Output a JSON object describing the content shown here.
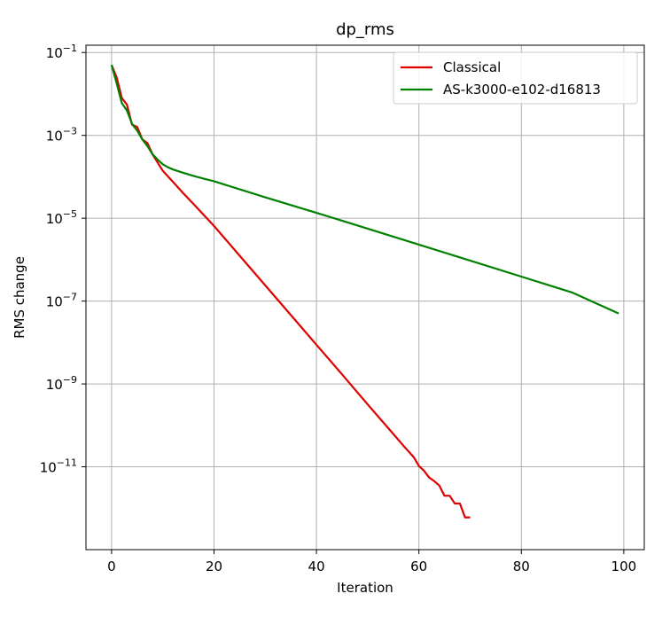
{
  "chart_data": {
    "type": "line",
    "title": "dp_rms",
    "xlabel": "Iteration",
    "ylabel": "RMS change",
    "xlim": [
      -5,
      104
    ],
    "ylim": [
      1e-13,
      0.15
    ],
    "yscale": "log",
    "grid": true,
    "legend_position": "top-right",
    "x_ticks": [
      0,
      20,
      40,
      60,
      80,
      100
    ],
    "y_ticks": [
      {
        "value": 0.1,
        "base": "10",
        "exp": "−1"
      },
      {
        "value": 0.001,
        "base": "10",
        "exp": "−3"
      },
      {
        "value": 1e-05,
        "base": "10",
        "exp": "−5"
      },
      {
        "value": 1e-07,
        "base": "10",
        "exp": "−7"
      },
      {
        "value": 1e-09,
        "base": "10",
        "exp": "−9"
      },
      {
        "value": 1e-11,
        "base": "10",
        "exp": "−11"
      }
    ],
    "series": [
      {
        "name": "Classical",
        "color": "#e00000",
        "x": [
          0,
          1,
          2,
          3,
          4,
          5,
          6,
          7,
          8,
          9,
          10,
          12,
          14,
          16,
          18,
          20,
          25,
          30,
          35,
          40,
          45,
          50,
          55,
          57,
          59,
          60,
          61,
          62,
          63,
          64,
          65,
          66,
          67,
          68,
          69,
          70
        ],
        "y": [
          0.05,
          0.025,
          0.008,
          0.0055,
          0.0018,
          0.0016,
          0.0008,
          0.00065,
          0.00035,
          0.00022,
          0.00014,
          7.5e-05,
          4e-05,
          2.2e-05,
          1.2e-05,
          6.5e-06,
          1.25e-06,
          2.4e-07,
          4.6e-08,
          8.8e-09,
          1.7e-09,
          3.2e-10,
          6.2e-11,
          3.2e-11,
          1.7e-11,
          1.05e-11,
          8e-12,
          5.5e-12,
          4.5e-12,
          3.5e-12,
          2e-12,
          2e-12,
          1.3e-12,
          1.3e-12,
          6e-13,
          6e-13
        ]
      },
      {
        "name": "AS-k3000-e102-d16813",
        "color": "#008000",
        "x": [
          0,
          1,
          2,
          3,
          4,
          5,
          6,
          7,
          8,
          9,
          10,
          11,
          12,
          14,
          16,
          18,
          20,
          30,
          40,
          50,
          60,
          70,
          80,
          90,
          99
        ],
        "y": [
          0.05,
          0.018,
          0.006,
          0.004,
          0.0019,
          0.0013,
          0.0008,
          0.00055,
          0.00035,
          0.00026,
          0.0002,
          0.00017,
          0.00015,
          0.000125,
          0.000105,
          9e-05,
          7.8e-05,
          3.2e-05,
          1.35e-05,
          5.6e-06,
          2.3e-06,
          9.5e-07,
          3.9e-07,
          1.6e-07,
          5e-08
        ]
      }
    ]
  }
}
